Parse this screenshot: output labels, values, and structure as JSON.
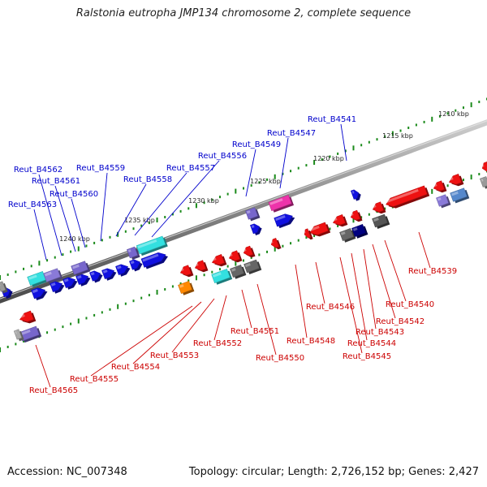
{
  "title": "Ralstonia eutropha JMP134 chromosome 2, complete sequence",
  "footer": {
    "accession": "Accession: NC_007348",
    "stats": "Topology: circular; Length: 2,726,152 bp; Genes: 2,427"
  },
  "colors": {
    "forward_label": "#0000cc",
    "reverse_label": "#cc0000",
    "backbone": "#777777",
    "tick": "#1a8a1a"
  },
  "scale_labels": [
    "1210 kbp",
    "1215 kbp",
    "1220 kbp",
    "1225 kbp",
    "1230 kbp",
    "1235 kbp",
    "1240 kbp"
  ],
  "forward_labels": [
    "Reut_B4541",
    "Reut_B4547",
    "Reut_B4549",
    "Reut_B4556",
    "Reut_B4557",
    "Reut_B4558",
    "Reut_B4559",
    "Reut_B4560",
    "Reut_B4561",
    "Reut_B4562",
    "Reut_B4563"
  ],
  "reverse_labels": [
    "Reut_B4539",
    "Reut_B4540",
    "Reut_B4542",
    "Reut_B4543",
    "Reut_B4544",
    "Reut_B4545",
    "Reut_B4546",
    "Reut_B4548",
    "Reut_B4550",
    "Reut_B4551",
    "Reut_B4552",
    "Reut_B4553",
    "Reut_B4554",
    "Reut_B4555",
    "Reut_B4565"
  ]
}
